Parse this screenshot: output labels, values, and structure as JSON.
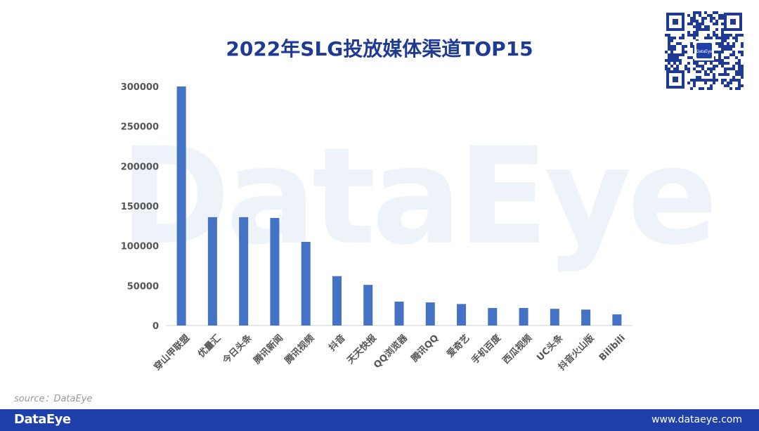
{
  "title": "2022年SLG投放媒体渠道TOP15",
  "watermark": "DataEye",
  "source": "source：DataEye",
  "footer": {
    "brand": "DataEye",
    "url": "www.dataeye.com"
  },
  "qr_badge": "DataEye",
  "colors": {
    "bar": "#4472c4",
    "title": "#1f3a93",
    "footer": "#1f3faa"
  },
  "chart_data": {
    "type": "bar",
    "title": "2022年SLG投放媒体渠道TOP15",
    "categories": [
      "穿山甲联盟",
      "优量汇",
      "今日头条",
      "腾讯新闻",
      "腾讯视频",
      "抖音",
      "天天快报",
      "QQ浏览器",
      "腾讯QQ",
      "爱奇艺",
      "手机百度",
      "西瓜视频",
      "UC头条",
      "抖音火山版",
      "Bilibili"
    ],
    "values": [
      300000,
      136000,
      136000,
      135000,
      105000,
      62000,
      51000,
      30000,
      29000,
      27000,
      22000,
      22000,
      21000,
      20000,
      14000
    ],
    "yticks": [
      0,
      50000,
      100000,
      150000,
      200000,
      250000,
      300000
    ],
    "ylim": [
      0,
      300000
    ],
    "xlabel": "",
    "ylabel": "",
    "grid": false,
    "legend": "none"
  }
}
